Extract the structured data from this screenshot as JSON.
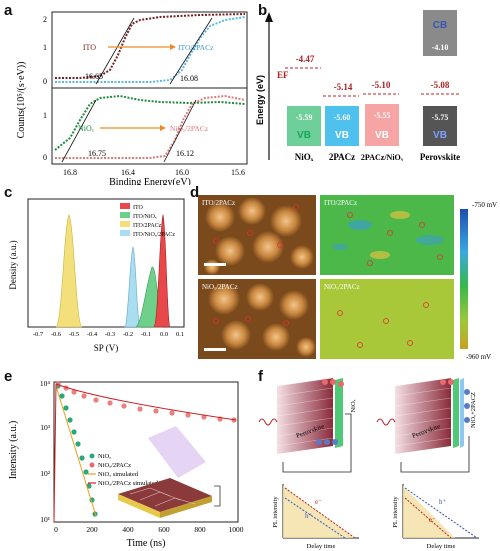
{
  "panels": {
    "a": {
      "label": "a",
      "ylabel": "Counts(10⁵/(s·eV))",
      "xlabel": "Binding Energy(eV)",
      "xticks": [
        "16.8",
        "16.4",
        "16.0",
        "15.6"
      ],
      "top": {
        "left_name": "ITO",
        "right_name": "ITO/2PACz",
        "v1": "16.65",
        "v2": "16.08",
        "yticks": [
          "2",
          "1",
          "0"
        ]
      },
      "bottom": {
        "left_name": "NiOₓ",
        "right_name": "NiOₓ/2PACz",
        "v1": "16.75",
        "v2": "16.12",
        "yticks": [
          "1",
          "0"
        ]
      },
      "colors": {
        "dark_red": "#7a1f1f",
        "light_blue": "#5ab8e8",
        "green": "#1f8a3a",
        "pink": "#e07a7a",
        "arrow": "#f08a24"
      }
    },
    "b": {
      "label": "b",
      "ylabel": "Energy (eV)",
      "ef_label": "EF",
      "columns": [
        {
          "name": "NiOₓ",
          "ef": "-4.47",
          "vb": "-5.59",
          "vb_text": "VB"
        },
        {
          "name": "2PACz",
          "ef": "-5.14",
          "vb": "-5.60",
          "vb_text": "VB"
        },
        {
          "name": "2PACz/NiOₓ",
          "ef": "-5.10",
          "vb": "-5.55",
          "vb_text": "VB"
        },
        {
          "name": "Perovskite",
          "ef": "-5.08",
          "vb": "-5.75",
          "vb_text": "VB",
          "cb": "-4.10",
          "cb_text": "CB"
        }
      ]
    },
    "c": {
      "label": "c",
      "ylabel": "Density (a.u.)",
      "xlabel": "SP (V)",
      "xticks": [
        "-0.7",
        "-0.6",
        "-0.5",
        "-0.4",
        "-0.3",
        "-0.2",
        "-0.1",
        "0.0",
        "0.1"
      ],
      "legend": [
        {
          "name": "ITO",
          "color": "#e8484a"
        },
        {
          "name": "ITO/NiOₓ",
          "color": "#6fd08a"
        },
        {
          "name": "ITO/2PACz",
          "color": "#f4e07a"
        },
        {
          "name": "ITO/NiOₓ/2PACz",
          "color": "#a9ddf0"
        }
      ]
    },
    "d": {
      "label": "d",
      "images": [
        "ITO/2PACz",
        "ITO/2PACz",
        "NiOₓ/2PACz",
        "NiOₓ/2PACz"
      ],
      "scale_top": "-750 mV",
      "scale_bottom": "-960 mV"
    },
    "e": {
      "label": "e",
      "ylabel": "Intensity (a.u.)",
      "xlabel": "Time (ns)",
      "xticks": [
        "0",
        "200",
        "400",
        "600",
        "800",
        "1000"
      ],
      "yticks": [
        "10⁴",
        "10³",
        "10²",
        "10¹"
      ],
      "legend": [
        {
          "name": "NiOₓ",
          "color": "#2aa87a"
        },
        {
          "name": "NiOₓ/2PACz",
          "color": "#e86a6a"
        },
        {
          "name": "NiOₓ simulated",
          "color": "#e8a020"
        },
        {
          "name": "NiOₓ/2PACz simulated",
          "color": "#d02020"
        }
      ]
    },
    "f": {
      "label": "f",
      "left": {
        "material": "Perovskite",
        "layer": "NiOₓ",
        "pl_y": "PL intensity",
        "pl_x": "Delay time",
        "e": "e⁻",
        "h": "h⁺"
      },
      "right": {
        "material": "Perovskite",
        "layer": "NiOₓ+2PACZ",
        "pl_y": "PL intensity",
        "pl_x": "Delay time",
        "e": "e⁻",
        "h": "h⁺"
      }
    }
  }
}
